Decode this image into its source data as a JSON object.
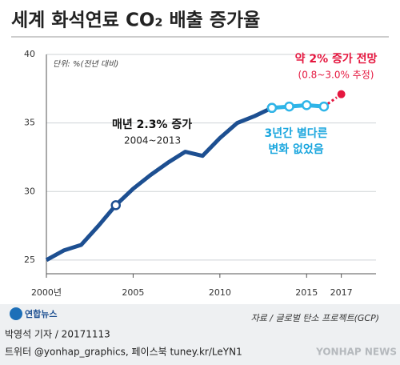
{
  "chart_data": {
    "type": "line",
    "title": "세계 화석연료 CO₂ 배출 증가율",
    "unit_note": "단위: %(전년 대비)",
    "x": [
      2000,
      2001,
      2002,
      2003,
      2004,
      2005,
      2006,
      2007,
      2008,
      2009,
      2010,
      2011,
      2012,
      2013,
      2014,
      2015,
      2016,
      2017
    ],
    "series": [
      {
        "color": "#1d4f91",
        "dashed": false,
        "marker_points": [
          4,
          13
        ],
        "values": [
          25.0,
          25.7,
          26.1,
          27.5,
          29.0,
          30.2,
          31.2,
          32.1,
          32.9,
          32.6,
          33.9,
          35.0,
          35.5,
          36.1,
          null,
          null,
          null,
          null
        ]
      },
      {
        "color": "#2fb5e8",
        "dashed": false,
        "marker_points": [
          13,
          14,
          15,
          16
        ],
        "values": [
          null,
          null,
          null,
          null,
          null,
          null,
          null,
          null,
          null,
          null,
          null,
          null,
          null,
          36.1,
          36.2,
          36.3,
          36.2,
          null
        ]
      },
      {
        "color": "#e5173f",
        "dashed": true,
        "marker_points": [
          17
        ],
        "values": [
          null,
          null,
          null,
          null,
          null,
          null,
          null,
          null,
          null,
          null,
          null,
          null,
          null,
          null,
          null,
          null,
          36.2,
          37.1
        ]
      }
    ],
    "xlim": [
      2000,
      2019
    ],
    "ylim": [
      24,
      40
    ],
    "xticks": [
      {
        "value": 2000,
        "label": "2000년"
      },
      2005,
      2010,
      2015,
      2017
    ],
    "yticks": [
      25,
      30,
      35,
      40
    ],
    "grid": true,
    "annotations": {
      "growth_title": "매년 2.3% 증가",
      "growth_period": "2004~2013",
      "flat_1": "3년간 별다른",
      "flat_2": "변화 없었음",
      "forecast_1": "약 2% 증가 전망",
      "forecast_2": "(0.8~3.0% 추정)"
    },
    "source": "자료 / 글로벌 탄소 프로젝트(GCP)"
  },
  "footer": {
    "logo": "연합뉴스",
    "byline": "박영석 기자 / 20171113",
    "sns": "트위터 @yonhap_graphics, 페이스북 tuney.kr/LeYN1",
    "watermark": "YONHAP NEWS"
  }
}
